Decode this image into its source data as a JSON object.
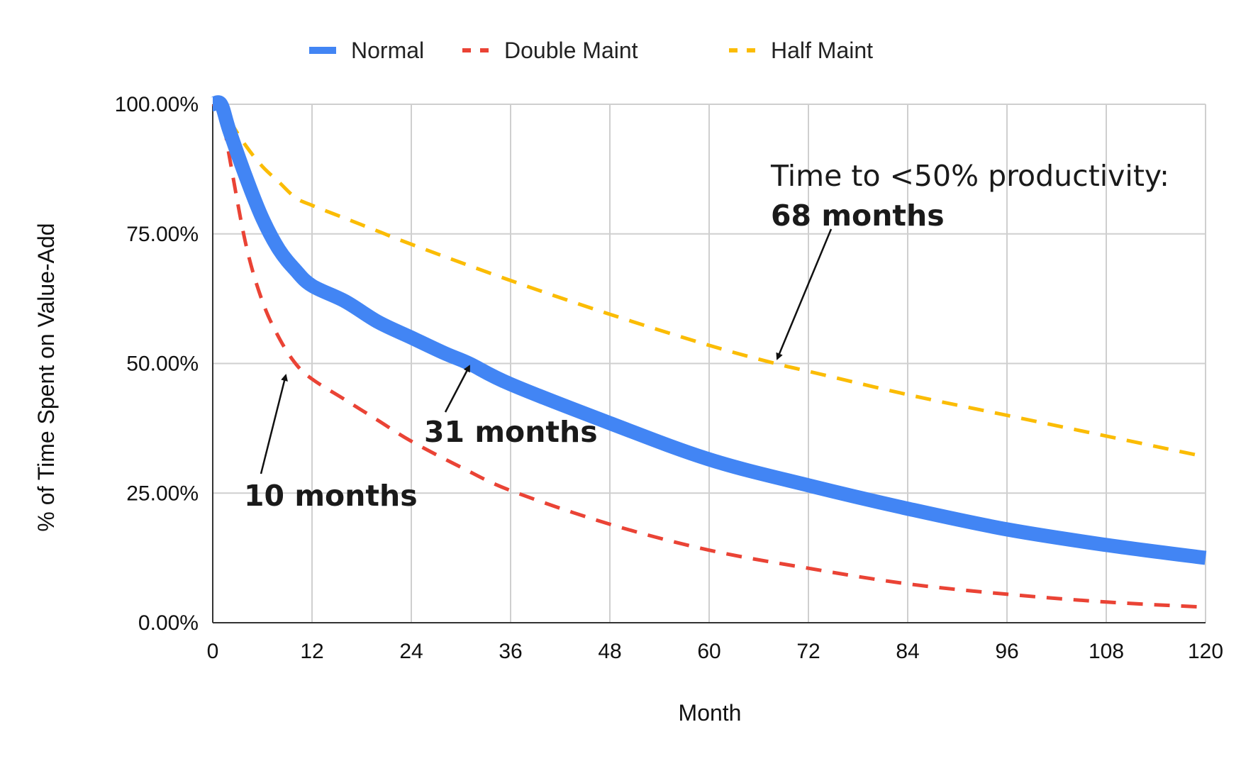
{
  "chart_data": {
    "type": "line",
    "title": "",
    "xlabel": "Month",
    "ylabel": "% of Time Spent on Value-Add",
    "xlim": [
      0,
      120
    ],
    "ylim": [
      0,
      100
    ],
    "x_ticks": [
      "0",
      "12",
      "24",
      "36",
      "48",
      "60",
      "72",
      "84",
      "96",
      "108",
      "120"
    ],
    "y_ticks": [
      "0.00%",
      "25.00%",
      "50.00%",
      "75.00%",
      "100.00%"
    ],
    "grid": true,
    "legend_position": "top",
    "series": [
      {
        "name": "Normal",
        "color": "#4285F4",
        "style": "solid-thick",
        "x": [
          0,
          1,
          2,
          4,
          6,
          8,
          10,
          12,
          16,
          20,
          24,
          28,
          31,
          36,
          48,
          60,
          72,
          84,
          96,
          108,
          120
        ],
        "y": [
          100,
          100,
          95,
          86,
          78,
          72,
          68,
          65,
          62,
          58,
          55,
          52,
          50,
          46,
          38.5,
          31.5,
          26.5,
          22,
          18,
          15,
          12.5
        ]
      },
      {
        "name": "Double Maint",
        "color": "#EA4335",
        "style": "dashed",
        "x": [
          0,
          1,
          2,
          4,
          6,
          8,
          10,
          12,
          16,
          20,
          24,
          30,
          36,
          48,
          60,
          72,
          84,
          96,
          108,
          120
        ],
        "y": [
          100,
          99,
          90,
          73,
          62,
          55,
          50,
          47,
          43,
          39,
          35,
          30,
          25.5,
          19,
          14,
          10.5,
          7.5,
          5.5,
          4,
          3
        ]
      },
      {
        "name": "Half Maint",
        "color": "#FBBC04",
        "style": "dashed",
        "x": [
          0,
          1,
          2,
          4,
          6,
          8,
          10,
          12,
          16,
          20,
          24,
          36,
          48,
          60,
          68,
          72,
          84,
          96,
          108,
          120
        ],
        "y": [
          100,
          100,
          97,
          92,
          88,
          85,
          82,
          80.5,
          78,
          75.5,
          73,
          66,
          59.5,
          53.5,
          50,
          48.5,
          44,
          40,
          36,
          32
        ]
      }
    ],
    "annotations": [
      {
        "lines": [
          "Time to <50% productivity:",
          "68 months"
        ],
        "bold_line": 1,
        "point": {
          "x": 68,
          "y": 50
        },
        "series": "Half Maint"
      },
      {
        "lines": [
          "31 months"
        ],
        "bold_line": 0,
        "point": {
          "x": 31,
          "y": 50
        },
        "series": "Normal"
      },
      {
        "lines": [
          "10 months"
        ],
        "bold_line": 0,
        "point": {
          "x": 9.5,
          "y": 48.5
        },
        "series": "Double Maint"
      }
    ]
  }
}
